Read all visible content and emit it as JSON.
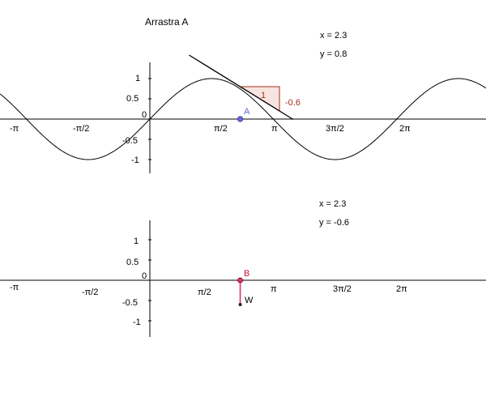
{
  "instruction": "Arrastra A",
  "colors": {
    "curve": "#000000",
    "axis": "#000000",
    "tangent": "#000000",
    "slope_triangle": "#a0301a",
    "slope_fill": "#f7e3df",
    "point_a": "#6666dd",
    "point_b": "#cc1133",
    "derivative_segment": "#dd3366"
  },
  "top_graph": {
    "readout_x": "x = 2.3",
    "readout_y": "y = 0.8",
    "point_label": "A",
    "slope_run_label": "1",
    "slope_rise_label": "-0.6",
    "x_tick_labels": [
      "-π",
      "-π/2",
      "π/2",
      "π",
      "3π/2",
      "2π"
    ],
    "y_tick_labels": [
      "1",
      "0.5",
      "0",
      "-0.5",
      "-1"
    ]
  },
  "bottom_graph": {
    "readout_x": "x = 2.3",
    "readout_y": "y = -0.6",
    "point_label": "B",
    "segment_end_label": "W",
    "x_tick_labels": [
      "-π",
      "-π/2",
      "π/2",
      "π",
      "3π/2",
      "2π"
    ],
    "y_tick_labels": [
      "1",
      "0.5",
      "0",
      "-0.5",
      "-1"
    ]
  },
  "chart_data": {
    "type": "line",
    "function": "sin",
    "x_point": 2.3,
    "y_value": 0.8,
    "slope": -0.6,
    "xlim": [
      -3.6,
      8.3
    ],
    "ylim_top": [
      -1.2,
      1.2
    ]
  }
}
